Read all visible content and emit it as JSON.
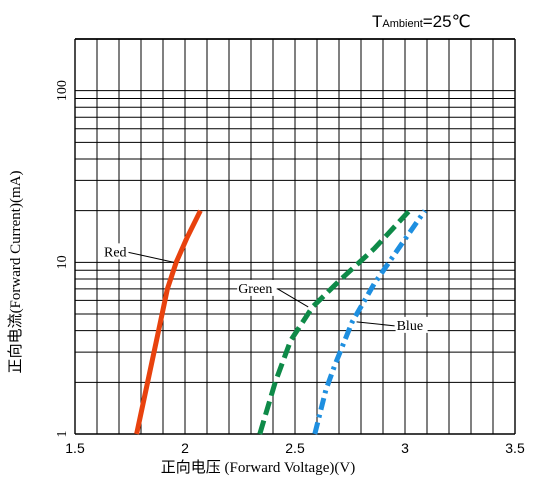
{
  "header": {
    "ambient_prefix": "T",
    "ambient_sub": "Ambient",
    "ambient_value": "=25℃"
  },
  "chart_data": {
    "type": "line",
    "title": "",
    "xlabel": "正向电压 (Forward Voltage)(V)",
    "ylabel": "正向电流(Forward Current)(mA)",
    "xlim": [
      1.5,
      3.5
    ],
    "ylim": [
      1,
      200
    ],
    "yscale": "log",
    "grid": true,
    "x_ticks": [
      {
        "value": 1.5,
        "label": "1.5"
      },
      {
        "value": 2.0,
        "label": "2"
      },
      {
        "value": 2.5,
        "label": "2.5"
      },
      {
        "value": 3.0,
        "label": "3"
      },
      {
        "value": 3.5,
        "label": "3.5"
      }
    ],
    "y_ticks": [
      {
        "value": 1,
        "label": "1"
      },
      {
        "value": 10,
        "label": "10"
      },
      {
        "value": 100,
        "label": "100"
      }
    ],
    "series": [
      {
        "name": "Red",
        "color": "#e8420e",
        "dash": "solid",
        "points": [
          [
            1.78,
            1
          ],
          [
            1.83,
            2
          ],
          [
            1.88,
            4
          ],
          [
            1.92,
            7
          ],
          [
            1.96,
            10
          ],
          [
            2.01,
            14
          ],
          [
            2.07,
            20
          ]
        ]
      },
      {
        "name": "Green",
        "color": "#0e8a48",
        "dash": "dash",
        "points": [
          [
            2.34,
            1
          ],
          [
            2.41,
            2
          ],
          [
            2.48,
            3.5
          ],
          [
            2.58,
            5.5
          ],
          [
            2.71,
            8
          ],
          [
            2.86,
            12
          ],
          [
            3.02,
            20
          ]
        ]
      },
      {
        "name": "Blue",
        "color": "#1e8fe0",
        "dash": "dashdot",
        "points": [
          [
            2.59,
            1
          ],
          [
            2.64,
            1.8
          ],
          [
            2.68,
            2.5
          ],
          [
            2.76,
            4.5
          ],
          [
            2.86,
            7.5
          ],
          [
            2.97,
            12
          ],
          [
            3.09,
            20
          ]
        ]
      }
    ],
    "annotations": [
      {
        "text": "Red",
        "series": "Red",
        "at": [
          1.95,
          10
        ]
      },
      {
        "text": "Green",
        "series": "Green",
        "at": [
          2.56,
          5.5
        ]
      },
      {
        "text": "Blue",
        "series": "Blue",
        "at": [
          2.78,
          4.5
        ]
      }
    ]
  }
}
